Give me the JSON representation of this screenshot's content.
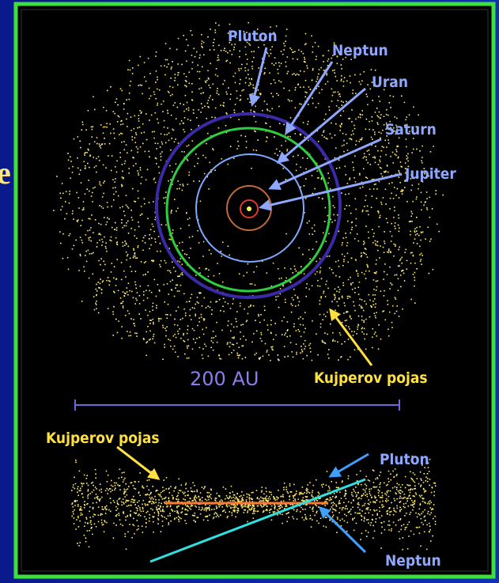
{
  "side_text": "e",
  "top_view": {
    "labels": [
      "Pluton",
      "Neptun",
      "Uran",
      "Saturn",
      "Jupiter"
    ],
    "belt_label": "Kujperov pojas"
  },
  "scale_label": "200 AU",
  "side_view": {
    "belt_label": "Kujperov pojas",
    "labels": [
      "Pluton",
      "Neptun"
    ]
  }
}
